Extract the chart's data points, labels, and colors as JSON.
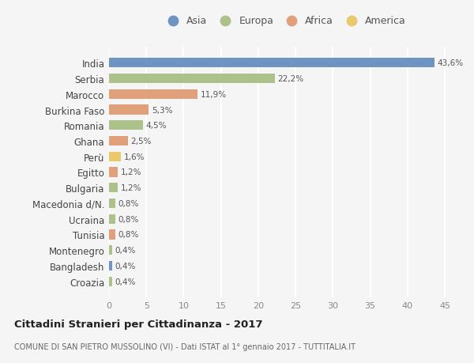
{
  "countries": [
    "India",
    "Serbia",
    "Marocco",
    "Burkina Faso",
    "Romania",
    "Ghana",
    "Perù",
    "Egitto",
    "Bulgaria",
    "Macedonia d/N.",
    "Ucraina",
    "Tunisia",
    "Montenegro",
    "Bangladesh",
    "Croazia"
  ],
  "values": [
    43.6,
    22.2,
    11.9,
    5.3,
    4.5,
    2.5,
    1.6,
    1.2,
    1.2,
    0.8,
    0.8,
    0.8,
    0.4,
    0.4,
    0.4
  ],
  "labels": [
    "43,6%",
    "22,2%",
    "11,9%",
    "5,3%",
    "4,5%",
    "2,5%",
    "1,6%",
    "1,2%",
    "1,2%",
    "0,8%",
    "0,8%",
    "0,8%",
    "0,4%",
    "0,4%",
    "0,4%"
  ],
  "colors": [
    "#7094c1",
    "#adc18a",
    "#e0a07a",
    "#e0a07a",
    "#adc18a",
    "#e0a07a",
    "#e8c96b",
    "#e0a07a",
    "#adc18a",
    "#adc18a",
    "#adc18a",
    "#e0a07a",
    "#adc18a",
    "#7094c1",
    "#adc18a"
  ],
  "legend_labels": [
    "Asia",
    "Europa",
    "Africa",
    "America"
  ],
  "legend_colors": [
    "#7094c1",
    "#adc18a",
    "#e0a07a",
    "#e8c96b"
  ],
  "title1": "Cittadini Stranieri per Cittadinanza - 2017",
  "title2": "COMUNE DI SAN PIETRO MUSSOLINO (VI) - Dati ISTAT al 1° gennaio 2017 - TUTTITALIA.IT",
  "xlim": [
    0,
    47
  ],
  "xticks": [
    0,
    5,
    10,
    15,
    20,
    25,
    30,
    35,
    40,
    45
  ],
  "background_color": "#f5f5f5",
  "grid_color": "#ffffff"
}
